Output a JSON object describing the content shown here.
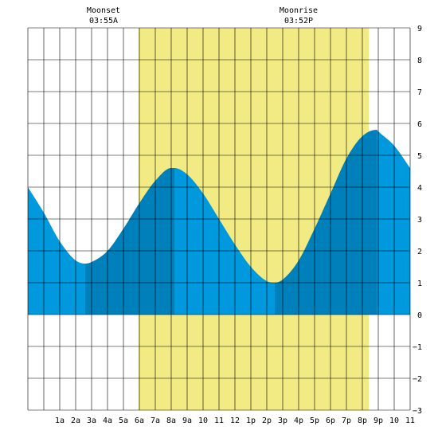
{
  "moon_events": [
    {
      "label": "Moonset",
      "time": "03:55A"
    },
    {
      "label": "Moonrise",
      "time": "03:52P"
    }
  ],
  "colors": {
    "daylight": "#f2ea82",
    "water_light": "#0099dd",
    "water_dark": "#0080bb",
    "grid": "#000000",
    "background": "#ffffff"
  },
  "chart_data": {
    "type": "area",
    "title": "",
    "xlabel": "",
    "ylabel": "",
    "grid": true,
    "x_unit": "hour_of_day",
    "xlim": [
      -1,
      23
    ],
    "ylim": [
      -3,
      9
    ],
    "x_ticks": [
      {
        "hour": 1,
        "label": "1a"
      },
      {
        "hour": 2,
        "label": "2a"
      },
      {
        "hour": 3,
        "label": "3a"
      },
      {
        "hour": 4,
        "label": "4a"
      },
      {
        "hour": 5,
        "label": "5a"
      },
      {
        "hour": 6,
        "label": "6a"
      },
      {
        "hour": 7,
        "label": "7a"
      },
      {
        "hour": 8,
        "label": "8a"
      },
      {
        "hour": 9,
        "label": "9a"
      },
      {
        "hour": 10,
        "label": "10"
      },
      {
        "hour": 11,
        "label": "11"
      },
      {
        "hour": 12,
        "label": "12"
      },
      {
        "hour": 13,
        "label": "1p"
      },
      {
        "hour": 14,
        "label": "2p"
      },
      {
        "hour": 15,
        "label": "3p"
      },
      {
        "hour": 16,
        "label": "4p"
      },
      {
        "hour": 17,
        "label": "5p"
      },
      {
        "hour": 18,
        "label": "6p"
      },
      {
        "hour": 19,
        "label": "7p"
      },
      {
        "hour": 20,
        "label": "8p"
      },
      {
        "hour": 21,
        "label": "9p"
      },
      {
        "hour": 22,
        "label": "10"
      },
      {
        "hour": 23,
        "label": "11"
      }
    ],
    "y_ticks": [
      9,
      8,
      7,
      6,
      5,
      4,
      3,
      2,
      1,
      0,
      -1,
      -2,
      -3
    ],
    "daylight": {
      "start_hour": 5.95,
      "end_hour": 20.4
    },
    "tide_extremes": [
      {
        "type": "low",
        "hour": 2.6,
        "value": 1.6
      },
      {
        "type": "high",
        "hour": 8.2,
        "value": 4.6
      },
      {
        "type": "low",
        "hour": 14.5,
        "value": 1.0
      },
      {
        "type": "high",
        "hour": 20.9,
        "value": 5.8
      }
    ],
    "series": [
      {
        "x": [
          -1,
          0,
          1,
          2,
          2.6,
          3,
          4,
          5,
          6,
          7,
          8,
          8.2,
          9,
          10,
          11,
          12,
          13,
          14,
          14.5,
          15,
          16,
          17,
          18,
          19,
          20,
          20.9,
          21,
          22,
          23
        ],
        "values": [
          4.0,
          3.2,
          2.3,
          1.7,
          1.6,
          1.65,
          2.0,
          2.7,
          3.5,
          4.2,
          4.6,
          4.6,
          4.4,
          3.8,
          3.0,
          2.2,
          1.5,
          1.05,
          1.0,
          1.1,
          1.7,
          2.7,
          3.8,
          4.9,
          5.6,
          5.8,
          5.75,
          5.3,
          4.6
        ]
      }
    ]
  }
}
